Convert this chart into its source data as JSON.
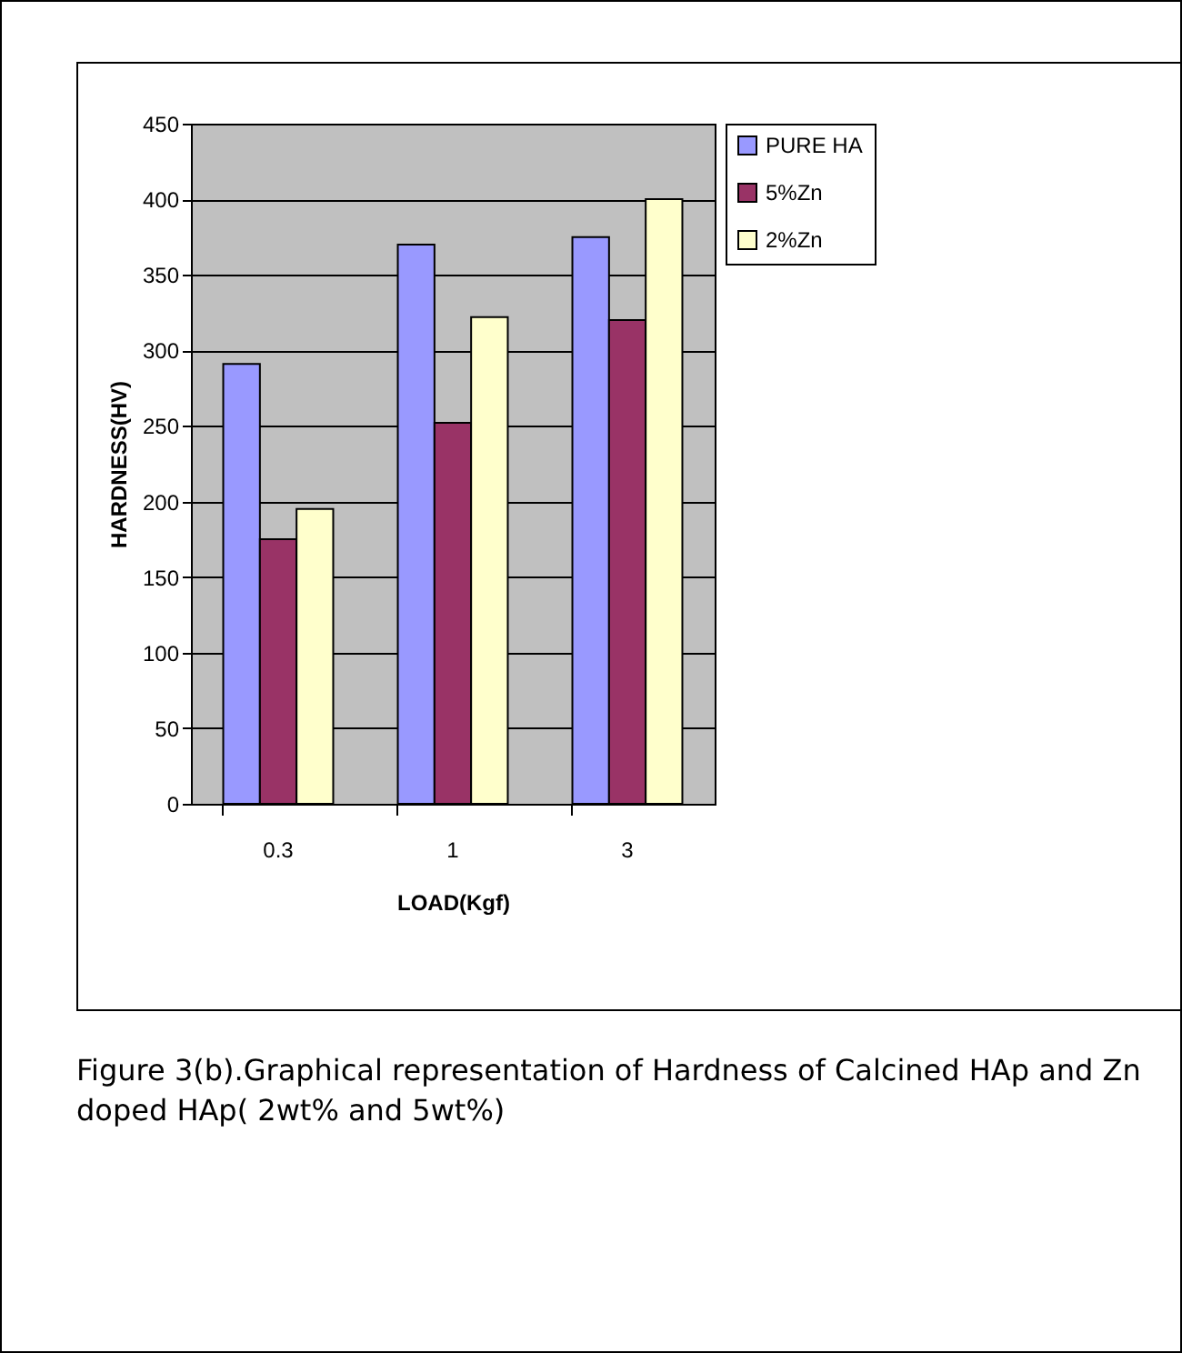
{
  "chart_data": {
    "type": "bar",
    "xlabel": "LOAD(Kgf)",
    "ylabel": "HARDNESS(HV)",
    "categories": [
      "0.3",
      "1",
      "3"
    ],
    "series": [
      {
        "name": "PURE HA",
        "color": "#9999ff",
        "values": [
          291,
          370,
          375
        ]
      },
      {
        "name": "5%Zn",
        "color": "#993366",
        "values": [
          175,
          252,
          320
        ]
      },
      {
        "name": "2%Zn",
        "color": "#ffffcc",
        "values": [
          195,
          322,
          400
        ]
      }
    ],
    "ylim": [
      0,
      450
    ],
    "yticks": [
      0,
      50,
      100,
      150,
      200,
      250,
      300,
      350,
      400,
      450
    ],
    "grid": "y",
    "legend": "right",
    "annotations": [
      "Figure 3(b).Graphical representation of Hardness  of Calcined HAp and Zn doped HAp( 2wt% and 5wt%)"
    ]
  }
}
